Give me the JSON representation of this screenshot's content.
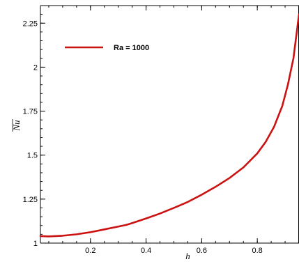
{
  "chart_data": {
    "type": "line",
    "xlabel": "h",
    "ylabel": "Nu",
    "ylabel_overline": true,
    "xlim": [
      0.02,
      0.95
    ],
    "ylim": [
      1.0,
      2.35
    ],
    "x_ticks": [
      0.2,
      0.4,
      0.6,
      0.8
    ],
    "x_tick_labels": [
      "0.2",
      "0.4",
      "0.6",
      "0.8"
    ],
    "y_ticks": [
      1.0,
      1.25,
      1.5,
      1.75,
      2.0,
      2.25
    ],
    "y_tick_labels": [
      "1",
      "1.25",
      "1.5",
      "1.75",
      "2",
      "2.25"
    ],
    "grid": false,
    "legend_position": "top-left",
    "series": [
      {
        "name": "Ra = 1000",
        "color": "#cc1111",
        "x": [
          0.02,
          0.05,
          0.1,
          0.15,
          0.2,
          0.25,
          0.3,
          0.33,
          0.35,
          0.4,
          0.45,
          0.5,
          0.55,
          0.6,
          0.65,
          0.7,
          0.75,
          0.8,
          0.83,
          0.86,
          0.89,
          0.91,
          0.93,
          0.95
        ],
        "y": [
          1.04,
          1.038,
          1.042,
          1.05,
          1.062,
          1.078,
          1.094,
          1.104,
          1.114,
          1.14,
          1.168,
          1.2,
          1.234,
          1.275,
          1.32,
          1.37,
          1.43,
          1.51,
          1.575,
          1.66,
          1.78,
          1.9,
          2.05,
          2.3
        ]
      }
    ]
  }
}
